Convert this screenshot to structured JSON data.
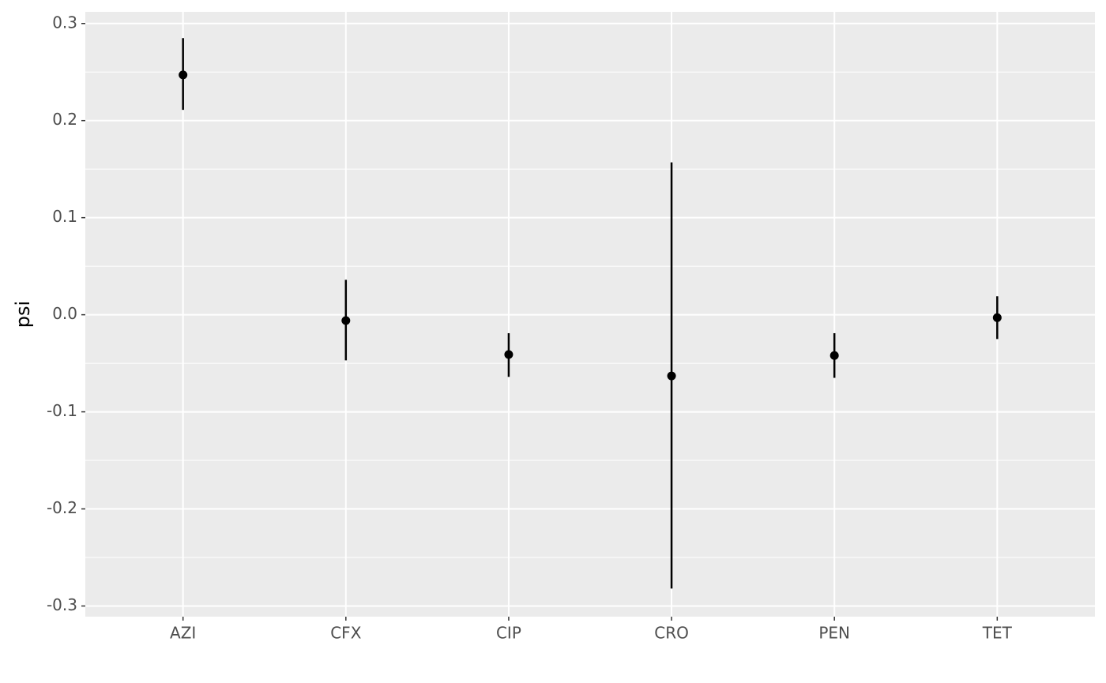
{
  "chart_data": {
    "type": "pointrange",
    "y_label": "psi",
    "categories": [
      "AZI",
      "CFX",
      "CIP",
      "CRO",
      "PEN",
      "TET"
    ],
    "values": [
      0.247,
      -0.006,
      -0.041,
      -0.063,
      -0.042,
      -0.003
    ],
    "lower": [
      0.211,
      -0.047,
      -0.064,
      -0.282,
      -0.065,
      -0.025
    ],
    "upper": [
      0.285,
      0.036,
      -0.019,
      0.157,
      -0.019,
      0.019
    ],
    "color": "#000000",
    "ylim": [
      -0.311,
      0.312
    ],
    "yticks": [
      -0.3,
      -0.2,
      -0.1,
      {
        "value": 0,
        "label": "0.0"
      },
      0.1,
      0.2,
      0.3
    ],
    "yminor": [
      -0.25,
      -0.15,
      -0.05,
      0.05,
      0.15,
      0.25
    ],
    "grid": true
  }
}
